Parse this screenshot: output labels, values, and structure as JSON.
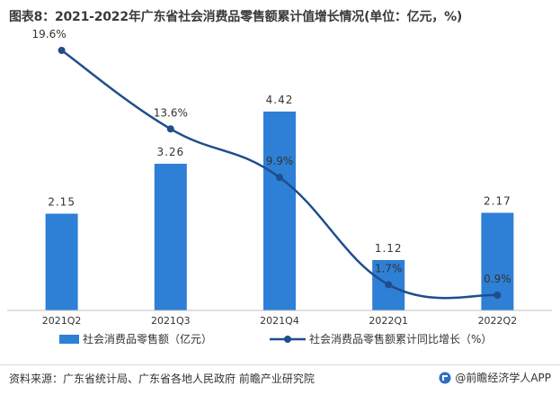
{
  "title": "图表8：2021-2022年广东省社会消费品零售额累计值增长情况(单位：亿元，%)",
  "source": "资料来源：广东省统计局、广东省各地人民政府 前瞻产业研究院",
  "brand": "@前瞻经济学人APP",
  "colors": {
    "bar": "#2e7fd6",
    "line": "#1f4e8c",
    "title": "#3a3a3a",
    "axis": "#bfbfbf"
  },
  "chart_data": {
    "type": "bar",
    "categories": [
      "2021Q2",
      "2021Q3",
      "2021Q4",
      "2022Q1",
      "2022Q2"
    ],
    "series": [
      {
        "name": "社会消费品零售额（亿元）",
        "type": "bar",
        "values": [
          2.15,
          3.26,
          4.42,
          1.12,
          2.17
        ],
        "labels": [
          "2.15",
          "3.26",
          "4.42",
          "1.12",
          "2.17"
        ]
      },
      {
        "name": "社会消费品零售额累计同比增长（%）",
        "type": "line",
        "values": [
          19.6,
          13.6,
          9.9,
          1.7,
          0.9
        ],
        "labels": [
          "19.6%",
          "13.6%",
          "9.9%",
          "1.7%",
          "0.9%"
        ]
      }
    ],
    "legend_position": "bottom",
    "grid": false
  }
}
